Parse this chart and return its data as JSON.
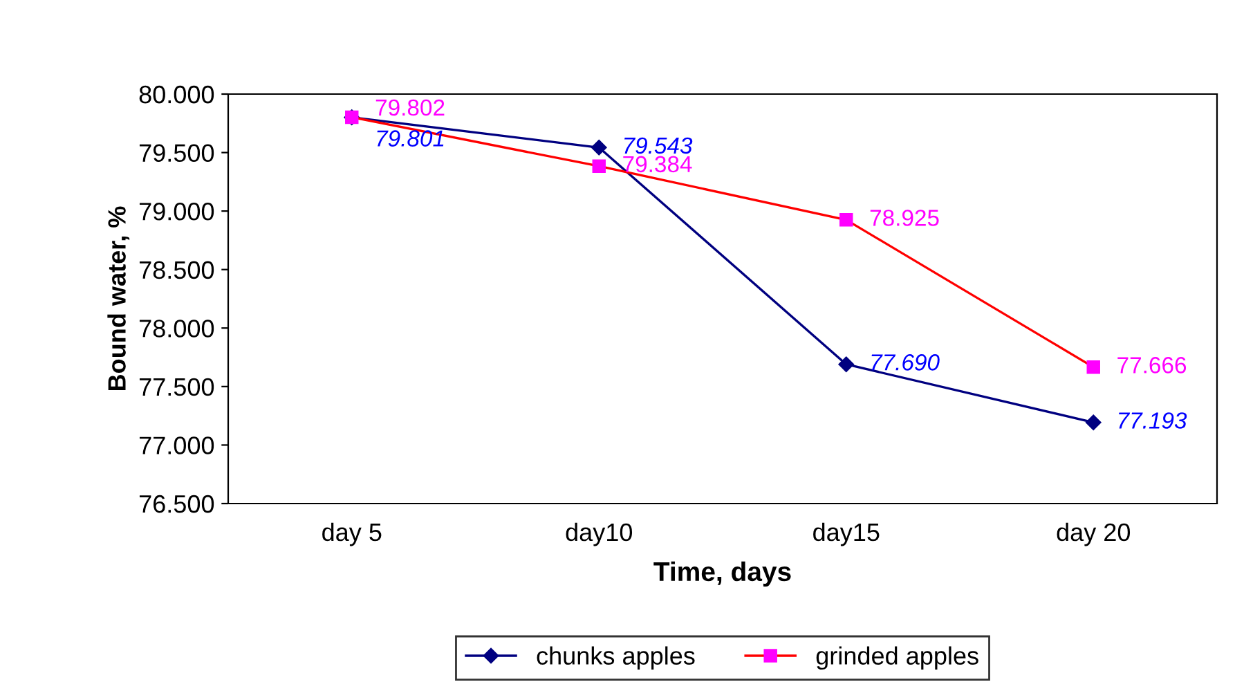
{
  "chart_data": {
    "type": "line",
    "xlabel": "Time, days",
    "ylabel": "Bound water, %",
    "categories": [
      "day 5",
      "day10",
      "day15",
      "day 20"
    ],
    "series": [
      {
        "name": "chunks apples",
        "color": "#000080",
        "marker": "diamond",
        "values": [
          79.801,
          79.543,
          77.69,
          77.193
        ],
        "value_labels": [
          "79.801",
          "79.543",
          "77.690",
          "77.193"
        ]
      },
      {
        "name": "grinded apples",
        "color": "#ff0000",
        "marker": "square",
        "values": [
          79.802,
          79.384,
          78.925,
          77.666
        ],
        "value_labels": [
          "79.802",
          "79.384",
          "78.925",
          "77.666"
        ]
      }
    ],
    "ylim": [
      76.5,
      80
    ],
    "yticks": [
      {
        "value": 76.5,
        "label": "76.500"
      },
      {
        "value": 77,
        "label": "77.000"
      },
      {
        "value": 77.5,
        "label": "77.500"
      },
      {
        "value": 78,
        "label": "78.000"
      },
      {
        "value": 78.5,
        "label": "78.500"
      },
      {
        "value": 79,
        "label": "79.000"
      },
      {
        "value": 79.5,
        "label": "79.500"
      },
      {
        "value": 80,
        "label": "80.000"
      }
    ],
    "grid": false,
    "legend": "bottom"
  }
}
